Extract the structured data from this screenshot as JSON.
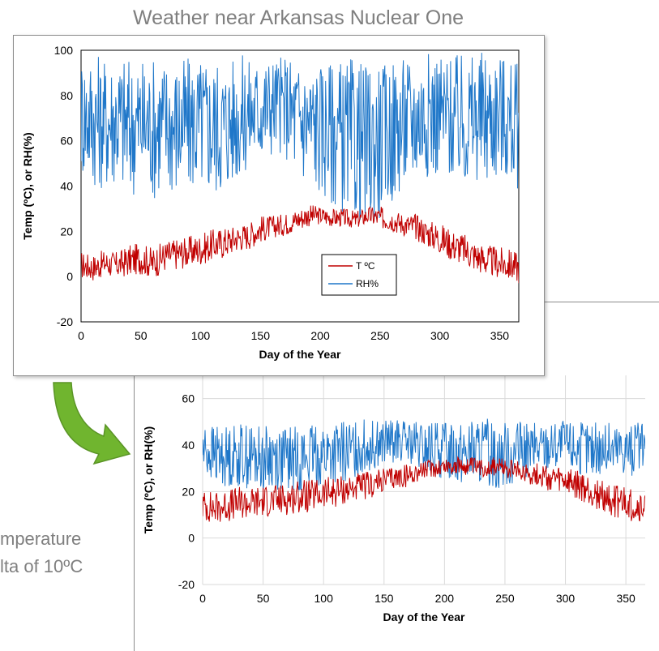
{
  "slide": {
    "title": "Weather near Arkansas Nuclear One",
    "left_text_line1": "mperature",
    "left_text_line2": "lta of 10ºC"
  },
  "colors": {
    "temp": "#c00000",
    "rh": "#1f77c9",
    "grid": "#d9d9d9",
    "arrow": "#70b52f"
  },
  "chart_data": [
    {
      "type": "line",
      "title": "",
      "xlabel": "Day of the Year",
      "ylabel": "Temp (ºC), or RH(%)",
      "xlim": [
        0,
        366
      ],
      "ylim": [
        -20,
        100
      ],
      "xticks": [
        0,
        50,
        100,
        150,
        200,
        250,
        300,
        350
      ],
      "yticks": [
        -20,
        0,
        20,
        40,
        60,
        80,
        100
      ],
      "grid": false,
      "legend": "bottom-right",
      "series": [
        {
          "name": "T ºC",
          "color": "#c00000",
          "x": [
            0,
            10,
            20,
            30,
            40,
            50,
            60,
            70,
            80,
            90,
            100,
            110,
            120,
            130,
            140,
            150,
            160,
            170,
            180,
            190,
            200,
            210,
            220,
            230,
            240,
            250,
            260,
            270,
            280,
            290,
            300,
            310,
            320,
            330,
            340,
            350,
            360,
            366
          ],
          "values": [
            5,
            4,
            6,
            5,
            7,
            8,
            6,
            9,
            10,
            11,
            12,
            14,
            15,
            17,
            18,
            21,
            22,
            23,
            25,
            27,
            27,
            26,
            26,
            25,
            27,
            26,
            25,
            23,
            22,
            19,
            17,
            14,
            12,
            9,
            7,
            6,
            5,
            4
          ],
          "spread": [
            6,
            6,
            6,
            6,
            7,
            7,
            7,
            7,
            7,
            7,
            7,
            7,
            7,
            6,
            6,
            6,
            5,
            5,
            5,
            5,
            4,
            4,
            4,
            4,
            4,
            5,
            5,
            5,
            6,
            6,
            7,
            7,
            7,
            7,
            7,
            7,
            7,
            7
          ]
        },
        {
          "name": "RH%",
          "color": "#1f77c9",
          "x": [
            0,
            10,
            20,
            30,
            40,
            50,
            60,
            70,
            80,
            90,
            100,
            110,
            120,
            130,
            140,
            150,
            160,
            170,
            180,
            190,
            200,
            210,
            220,
            230,
            240,
            250,
            260,
            270,
            280,
            290,
            300,
            310,
            320,
            330,
            340,
            350,
            360,
            366
          ],
          "values": [
            72,
            70,
            68,
            70,
            66,
            68,
            66,
            68,
            66,
            67,
            68,
            66,
            67,
            70,
            72,
            74,
            76,
            76,
            70,
            68,
            66,
            64,
            62,
            60,
            58,
            60,
            64,
            68,
            70,
            72,
            72,
            70,
            68,
            70,
            70,
            72,
            68,
            66
          ],
          "spread": [
            28,
            30,
            30,
            30,
            32,
            30,
            32,
            30,
            32,
            30,
            30,
            32,
            30,
            28,
            26,
            24,
            22,
            22,
            28,
            28,
            30,
            32,
            34,
            36,
            36,
            34,
            32,
            30,
            28,
            28,
            28,
            28,
            30,
            30,
            30,
            28,
            28,
            28
          ]
        }
      ]
    },
    {
      "type": "line",
      "title": "",
      "xlabel": "Day of the Year",
      "ylabel": "Temp (ºC), or RH(%)",
      "xlim": [
        0,
        366
      ],
      "ylim": [
        -20,
        70
      ],
      "xticks": [
        0,
        50,
        100,
        150,
        200,
        250,
        300,
        350
      ],
      "yticks": [
        -20,
        0,
        20,
        40,
        60
      ],
      "grid": true,
      "legend": "none",
      "series": [
        {
          "name": "",
          "color": "#c00000",
          "x": [
            0,
            10,
            20,
            30,
            40,
            50,
            60,
            70,
            80,
            90,
            100,
            110,
            120,
            130,
            140,
            150,
            160,
            170,
            180,
            190,
            200,
            210,
            220,
            230,
            240,
            250,
            260,
            270,
            280,
            290,
            300,
            310,
            320,
            330,
            340,
            350,
            360,
            366
          ],
          "values": [
            14,
            13,
            14,
            15,
            15,
            16,
            16,
            17,
            18,
            18,
            19,
            20,
            21,
            22,
            23,
            25,
            26,
            27,
            29,
            30,
            31,
            31,
            31,
            30,
            31,
            30,
            29,
            28,
            27,
            25,
            24,
            22,
            20,
            18,
            16,
            15,
            13,
            12
          ],
          "spread": [
            7,
            7,
            7,
            7,
            7,
            7,
            7,
            7,
            7,
            7,
            7,
            7,
            6,
            6,
            6,
            5,
            5,
            5,
            4,
            4,
            4,
            4,
            4,
            4,
            4,
            4,
            4,
            5,
            5,
            6,
            6,
            7,
            7,
            7,
            7,
            7,
            7,
            7
          ]
        },
        {
          "name": "",
          "color": "#1f77c9",
          "x": [
            0,
            10,
            20,
            30,
            40,
            50,
            60,
            70,
            80,
            90,
            100,
            110,
            120,
            130,
            140,
            150,
            160,
            170,
            180,
            190,
            200,
            210,
            220,
            230,
            240,
            250,
            260,
            270,
            280,
            290,
            300,
            310,
            320,
            330,
            340,
            350,
            360,
            366
          ],
          "values": [
            38,
            36,
            35,
            36,
            35,
            34,
            35,
            34,
            34,
            35,
            36,
            36,
            37,
            39,
            40,
            41,
            42,
            41,
            38,
            38,
            38,
            38,
            37,
            37,
            36,
            36,
            37,
            38,
            39,
            40,
            40,
            39,
            38,
            38,
            38,
            39,
            38,
            37
          ],
          "spread": [
            12,
            13,
            13,
            14,
            14,
            14,
            14,
            14,
            14,
            14,
            14,
            14,
            13,
            12,
            11,
            10,
            9,
            9,
            12,
            12,
            13,
            14,
            14,
            15,
            15,
            14,
            13,
            12,
            11,
            11,
            11,
            12,
            12,
            12,
            12,
            12,
            12,
            12
          ]
        }
      ]
    }
  ]
}
